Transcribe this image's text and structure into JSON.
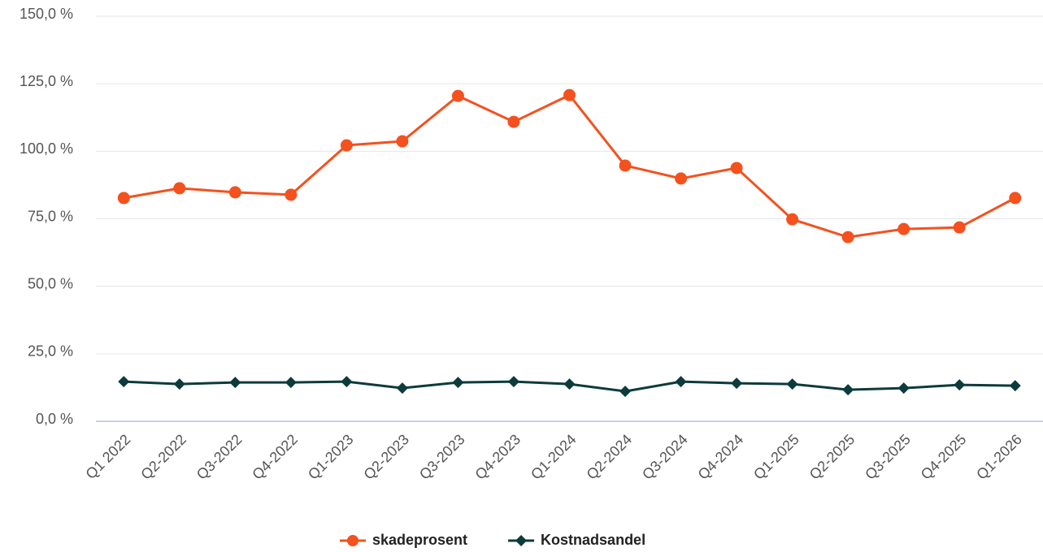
{
  "chart_data": {
    "type": "line",
    "categories": [
      "Q1 2022",
      "Q2-2022",
      "Q3-2022",
      "Q4-2022",
      "Q1-2023",
      "Q2-2023",
      "Q3-2023",
      "Q4-2023",
      "Q1-2024",
      "Q2-2024",
      "Q3-2024",
      "Q4-2024",
      "Q1-2025",
      "Q2-2025",
      "Q3-2025",
      "Q4-2025",
      "Q1-2026"
    ],
    "series": [
      {
        "name": "skadeprosent",
        "color": "#f4511e",
        "marker": "circle",
        "values": [
          82.7,
          86.3,
          84.8,
          83.9,
          102.2,
          103.7,
          120.5,
          110.9,
          120.8,
          94.7,
          89.9,
          93.8,
          74.8,
          68.2,
          71.2,
          71.8,
          82.7
        ]
      },
      {
        "name": "Kostnadsandel",
        "color": "#0d3b3b",
        "marker": "diamond",
        "values": [
          14.7,
          13.8,
          14.4,
          14.4,
          14.7,
          12.3,
          14.4,
          14.7,
          13.8,
          11.1,
          14.7,
          14.1,
          13.8,
          11.7,
          12.3,
          13.5,
          13.2
        ]
      }
    ],
    "ylim": [
      0,
      150
    ],
    "yticks": [
      {
        "value": 0,
        "label": "0,0 %"
      },
      {
        "value": 25,
        "label": "25,0 %"
      },
      {
        "value": 50,
        "label": "50,0 %"
      },
      {
        "value": 75,
        "label": "75,0 %"
      },
      {
        "value": 100,
        "label": "100,0 %"
      },
      {
        "value": 125,
        "label": "125,0 %"
      },
      {
        "value": 150,
        "label": "150,0 %"
      }
    ],
    "grid": true,
    "legend": "bottom"
  }
}
